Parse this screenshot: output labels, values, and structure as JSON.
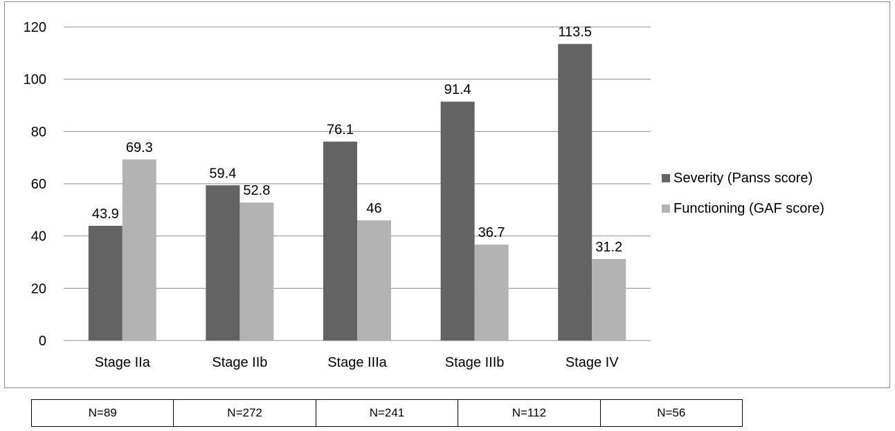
{
  "chart_data": {
    "type": "bar",
    "categories": [
      "Stage IIa",
      "Stage IIb",
      "Stage IIIa",
      "Stage IIIb",
      "Stage IV"
    ],
    "series": [
      {
        "name": "Severity (Panss score)",
        "values": [
          43.9,
          59.4,
          76.1,
          91.4,
          113.5
        ],
        "color": "#636363"
      },
      {
        "name": "Functioning (GAF score)",
        "values": [
          69.3,
          52.8,
          46,
          36.7,
          31.2
        ],
        "color": "#b3b3b3"
      }
    ],
    "y_ticks": [
      "0",
      "20",
      "40",
      "60",
      "80",
      "100",
      "120"
    ],
    "data_labels": [
      [
        "43.9",
        "59.4",
        "76.1",
        "91.4",
        "113.5"
      ],
      [
        "69.3",
        "52.8",
        "46",
        "36.7",
        "31.2"
      ]
    ],
    "ylim": [
      0,
      120
    ],
    "grid": true,
    "legend_position": "right",
    "title": "",
    "xlabel": "",
    "ylabel": ""
  },
  "sample_table": {
    "cells": [
      "N=89",
      "N=272",
      "N=241",
      "N=112",
      "N=56"
    ]
  }
}
